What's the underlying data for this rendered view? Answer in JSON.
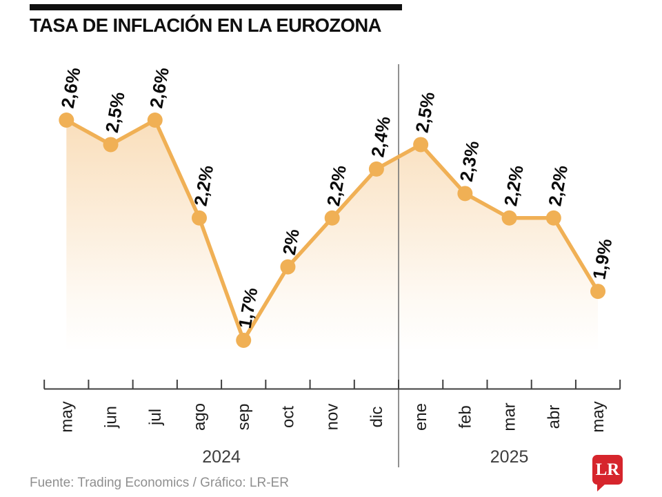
{
  "header": {
    "title": "TASA DE INFLACIÓN EN LA EUROZONA"
  },
  "chart_data": {
    "type": "area",
    "title": "TASA DE INFLACIÓN EN LA EUROZONA",
    "categories": [
      "may",
      "jun",
      "jul",
      "ago",
      "sep",
      "oct",
      "nov",
      "dic",
      "ene",
      "feb",
      "mar",
      "abr",
      "may"
    ],
    "values": [
      2.6,
      2.5,
      2.6,
      2.2,
      1.7,
      2.0,
      2.2,
      2.4,
      2.5,
      2.3,
      2.2,
      2.2,
      1.9
    ],
    "labels": [
      "2,6%",
      "2,5%",
      "2,6%",
      "2,2%",
      "1,7%",
      "2%",
      "2,2%",
      "2,4%",
      "2,5%",
      "2,3%",
      "2,2%",
      "2,2%",
      "1,9%"
    ],
    "year_groups": [
      {
        "label": "2024",
        "start": 0,
        "end": 7
      },
      {
        "label": "2025",
        "start": 8,
        "end": 12
      }
    ],
    "divider_after_index": 7,
    "xlabel": "",
    "ylabel": "",
    "unit": "%",
    "grid": false,
    "legend": "none"
  },
  "colors": {
    "line": "#F0B055",
    "marker": "#F0B055",
    "fill_top": "#F3BC74",
    "axis": "#3f3f3f",
    "divider": "#757575",
    "value_label": "#0a0a0a",
    "month_label": "#1d1d1d",
    "year_label": "#3d3d3d",
    "title": "#101010",
    "title_bar": "#101010",
    "source": "#8f8f8f",
    "logo_bg": "#D6252C",
    "logo_fg": "#FFFFFF",
    "background": "#FFFFFF"
  },
  "footer": {
    "source": "Fuente: Trading Economics / Gráfico: LR-ER",
    "logo_text": "LR"
  }
}
